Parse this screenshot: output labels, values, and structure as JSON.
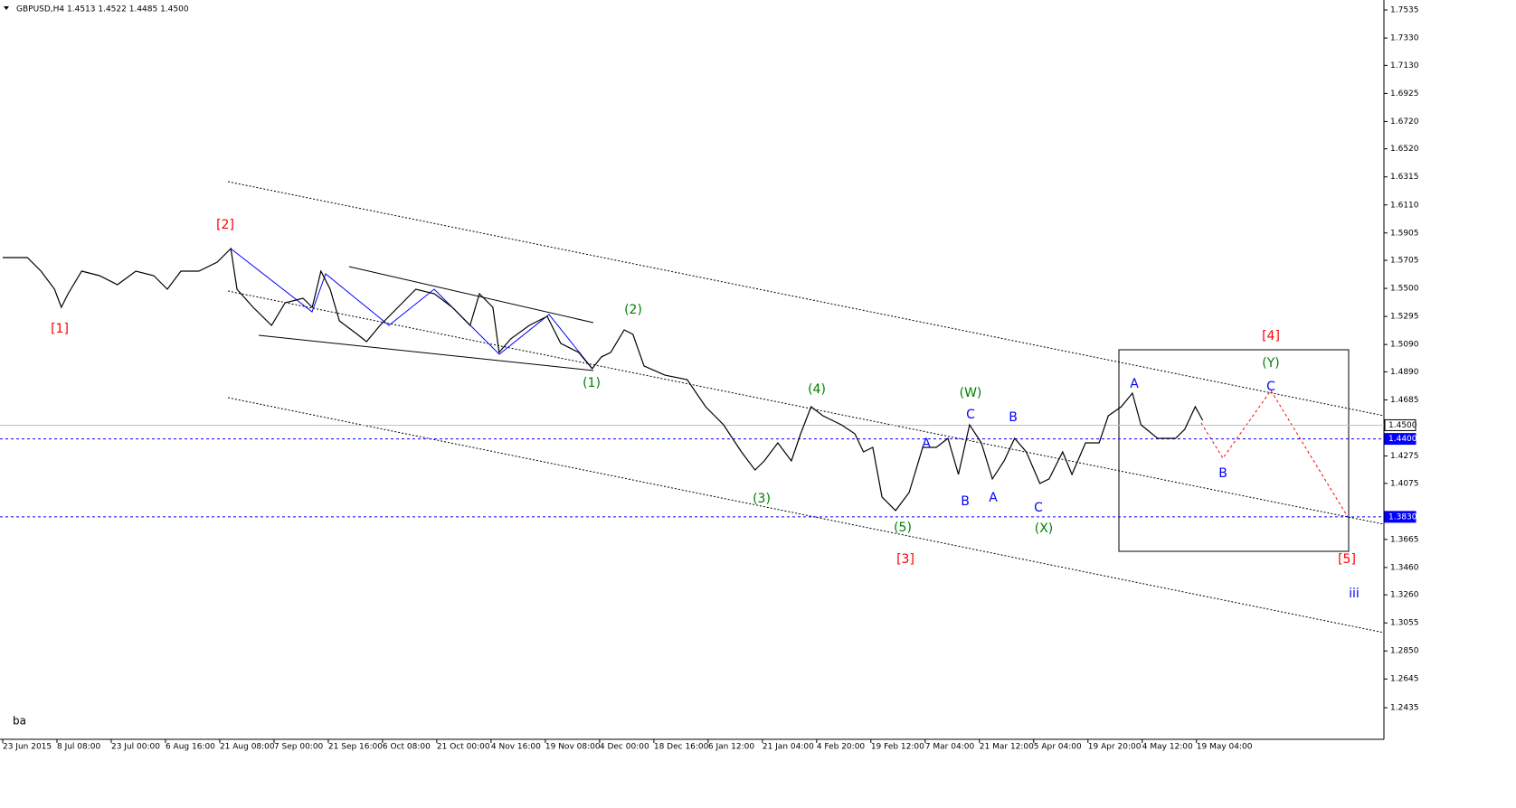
{
  "chart_data": {
    "type": "line",
    "title": "GBPUSD,H4  1.4513 1.4522 1.4485 1.4500",
    "footer": "ba",
    "color": "#000000",
    "x": [
      0,
      40,
      62,
      84,
      95,
      106,
      128,
      157,
      186,
      216,
      245,
      267,
      289,
      318,
      348,
      370,
      380,
      406,
      436,
      458,
      487,
      502,
      516,
      531,
      546,
      575,
      590,
      612,
      641,
      670,
      700,
      729,
      758,
      773,
      795,
      805,
      824,
      854,
      883,
      905,
      934,
      956,
      971,
      986,
      1008,
      1022,
      1040,
      1074,
      1110,
      1140,
      1169,
      1198,
      1220,
      1235,
      1257,
      1279,
      1294,
      1311,
      1330,
      1360,
      1382,
      1396,
      1411,
      1426,
      1448,
      1470,
      1492,
      1514,
      1533,
      1550,
      1568,
      1587,
      1605,
      1624,
      1641,
      1660,
      1682,
      1697,
      1719,
      1734,
      1756,
      1778,
      1793,
      1814,
      1832,
      1846,
      1873,
      1902,
      1917,
      1934,
      1946
    ],
    "values": [
      1.5725,
      1.5725,
      1.5626,
      1.5494,
      1.5362,
      1.5461,
      1.5626,
      1.5593,
      1.5527,
      1.5626,
      1.5593,
      1.5494,
      1.5626,
      1.5626,
      1.5692,
      1.5791,
      1.5494,
      1.5362,
      1.523,
      1.5395,
      1.5428,
      1.5362,
      1.5626,
      1.5494,
      1.5263,
      1.5164,
      1.5111,
      1.523,
      1.5362,
      1.5494,
      1.5461,
      1.5362,
      1.523,
      1.5461,
      1.5362,
      1.5032,
      1.5131,
      1.523,
      1.5296,
      1.5098,
      1.5032,
      1.4913,
      1.4999,
      1.5032,
      1.5197,
      1.5164,
      1.4933,
      1.4866,
      1.4833,
      1.4635,
      1.4503,
      1.4305,
      1.4173,
      1.4239,
      1.4371,
      1.4239,
      1.4437,
      1.4635,
      1.4569,
      1.4503,
      1.4437,
      1.4305,
      1.4338,
      1.3975,
      1.3876,
      1.4008,
      1.4338,
      1.4338,
      1.4404,
      1.414,
      1.4503,
      1.4371,
      1.4107,
      1.4239,
      1.4404,
      1.4305,
      1.4074,
      1.4107,
      1.4305,
      1.414,
      1.4371,
      1.4371,
      1.4569,
      1.4635,
      1.4734,
      1.4503,
      1.4404,
      1.4404,
      1.447,
      1.4635,
      1.4536
    ],
    "xlim": [
      -4.4,
      2240
    ],
    "ylim": [
      1.2204,
      1.7608
    ],
    "xticks": [
      {
        "value": 0,
        "label": "23 Jun 2015"
      },
      {
        "value": 88,
        "label": "8 Jul 08:00"
      },
      {
        "value": 176,
        "label": "23 Jul 00:00"
      },
      {
        "value": 264,
        "label": "6 Aug 16:00"
      },
      {
        "value": 352,
        "label": "21 Aug 08:00"
      },
      {
        "value": 440,
        "label": "7 Sep 00:00"
      },
      {
        "value": 528,
        "label": "21 Sep 16:00"
      },
      {
        "value": 616,
        "label": "6 Oct 08:00"
      },
      {
        "value": 704,
        "label": "21 Oct 00:00"
      },
      {
        "value": 792,
        "label": "4 Nov 16:00"
      },
      {
        "value": 880,
        "label": "19 Nov 08:00"
      },
      {
        "value": 968,
        "label": "4 Dec 00:00"
      },
      {
        "value": 1056,
        "label": "18 Dec 16:00"
      },
      {
        "value": 1144,
        "label": "6 Jan 12:00"
      },
      {
        "value": 1232,
        "label": "21 Jan 04:00"
      },
      {
        "value": 1320,
        "label": "4 Feb 20:00"
      },
      {
        "value": 1408,
        "label": "19 Feb 12:00"
      },
      {
        "value": 1496,
        "label": "7 Mar 04:00"
      },
      {
        "value": 1584,
        "label": "21 Mar 12:00"
      },
      {
        "value": 1672,
        "label": "5 Apr 04:00"
      },
      {
        "value": 1760,
        "label": "19 Apr 20:00"
      },
      {
        "value": 1848,
        "label": "4 May 12:00"
      },
      {
        "value": 1936,
        "label": "19 May 04:00"
      }
    ],
    "yticks": [
      1.7535,
      {
        "value": 1.733,
        "label": "1.7330"
      },
      {
        "value": 1.713,
        "label": "1.7130"
      },
      1.6925,
      {
        "value": 1.672,
        "label": "1.6720"
      },
      {
        "value": 1.652,
        "label": "1.6520"
      },
      1.6315,
      {
        "value": 1.611,
        "label": "1.6110"
      },
      1.5905,
      {
        "value": 1.5705,
        "label": "1.5705"
      },
      {
        "value": 1.55,
        "label": "1.5500"
      },
      1.5295,
      {
        "value": 1.509,
        "label": "1.5090"
      },
      {
        "value": 1.489,
        "label": "1.4890"
      },
      1.4685,
      1.4275,
      1.4075,
      1.3665,
      {
        "value": 1.346,
        "label": "1.3460"
      },
      {
        "value": 1.326,
        "label": "1.3260"
      },
      1.3055,
      {
        "value": 1.285,
        "label": "1.2850"
      },
      1.2645,
      1.2435
    ],
    "price_lines": [
      {
        "value": 1.45,
        "label": "1.4500",
        "color": "#c0c0c0",
        "style": "solid"
      },
      {
        "value": 1.44,
        "label": "1.4400",
        "color": "#0000ff",
        "style": "dashed"
      },
      {
        "value": 1.383,
        "label": "1.3830",
        "color": "#0000ff",
        "style": "dashed"
      }
    ],
    "annotations": [
      {
        "text": "[1]",
        "color": "#ff0000"
      },
      {
        "text": "[2]",
        "color": "#ff0000"
      },
      {
        "text": "[3]",
        "color": "#ff0000"
      },
      {
        "text": "[4]",
        "color": "#ff0000"
      },
      {
        "text": "[5]",
        "color": "#ff0000"
      },
      {
        "text": "(1)",
        "color": "#008000"
      },
      {
        "text": "(2)",
        "color": "#008000"
      },
      {
        "text": "(3)",
        "color": "#008000"
      },
      {
        "text": "(4)",
        "color": "#008000"
      },
      {
        "text": "(5)",
        "color": "#008000"
      },
      {
        "text": "(W)",
        "color": "#008000"
      },
      {
        "text": "(X)",
        "color": "#008000"
      },
      {
        "text": "(Y)",
        "color": "#008000"
      },
      {
        "text": "A",
        "color": "#0000ff"
      },
      {
        "text": "B",
        "color": "#0000ff"
      },
      {
        "text": "C",
        "color": "#0000ff"
      },
      {
        "text": "A",
        "color": "#0000ff"
      },
      {
        "text": "B",
        "color": "#0000ff"
      },
      {
        "text": "C",
        "color": "#0000ff"
      },
      {
        "text": "A",
        "color": "#0000ff"
      },
      {
        "text": "B",
        "color": "#0000ff"
      },
      {
        "text": "C",
        "color": "#0000ff"
      },
      {
        "text": "iii",
        "color": "#0000ff"
      }
    ]
  }
}
